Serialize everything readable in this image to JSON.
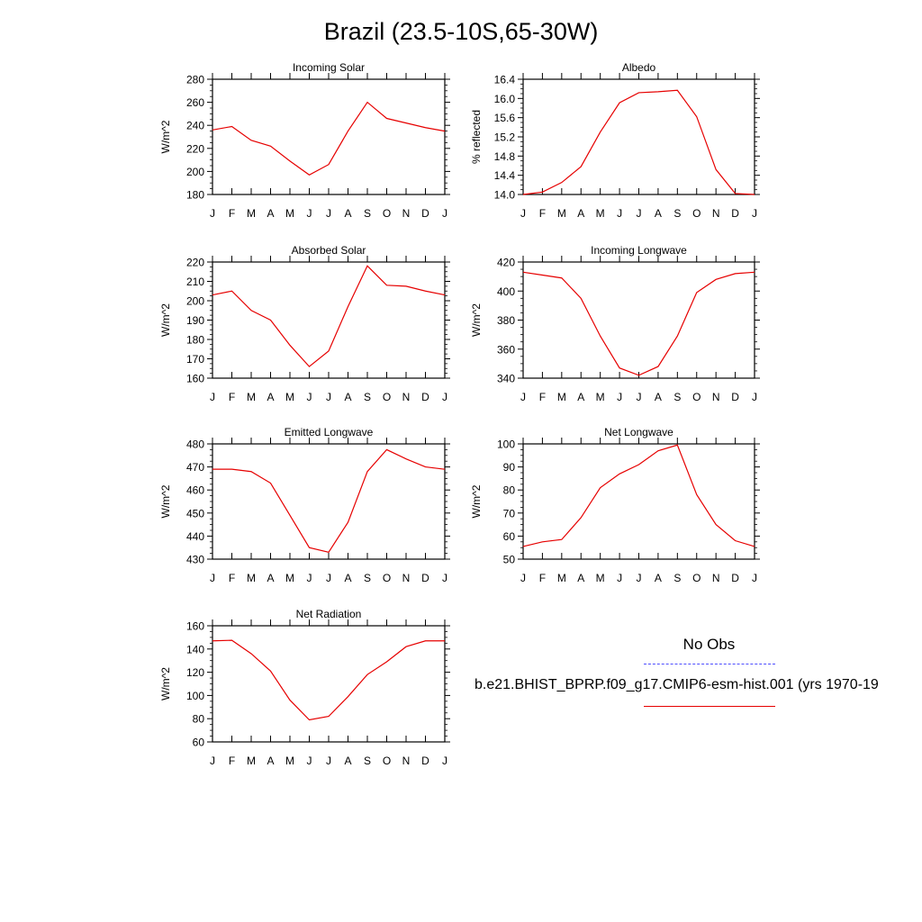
{
  "title": "Brazil (23.5-10S,65-30W)",
  "legend": {
    "title": "No Obs",
    "model_label": "b.e21.BHIST_BPRP.f09_g17.CMIP6-esm-hist.001 (yrs 1970-19",
    "obs_color": "#4d4dff",
    "model_color": "#e60000"
  },
  "chart_data": [
    {
      "type": "line",
      "title": "Incoming Solar",
      "ylabel": "W/m^2",
      "categories": [
        "J",
        "F",
        "M",
        "A",
        "M",
        "J",
        "J",
        "A",
        "S",
        "O",
        "N",
        "D",
        "J"
      ],
      "ylim": [
        180,
        280
      ],
      "yticks": [
        180,
        200,
        220,
        240,
        260,
        280
      ],
      "ytick_labels": [
        "180",
        "200",
        "220",
        "240",
        "260",
        "280"
      ],
      "series": [
        {
          "values": [
            236,
            239,
            227,
            222,
            209,
            197,
            206,
            235,
            260,
            246,
            242,
            238,
            235
          ]
        }
      ]
    },
    {
      "type": "line",
      "title": "Albedo",
      "ylabel": "% reflected",
      "categories": [
        "J",
        "F",
        "M",
        "A",
        "M",
        "J",
        "J",
        "A",
        "S",
        "O",
        "N",
        "D",
        "J"
      ],
      "ylim": [
        14.0,
        16.4
      ],
      "yticks": [
        14.0,
        14.4,
        14.8,
        15.2,
        15.6,
        16.0,
        16.4
      ],
      "ytick_labels": [
        "14.0",
        "14.4",
        "14.8",
        "15.2",
        "15.6",
        "16.0",
        "16.4"
      ],
      "series": [
        {
          "values": [
            14.0,
            14.05,
            14.25,
            14.58,
            15.3,
            15.91,
            16.12,
            16.14,
            16.17,
            15.62,
            14.52,
            14.02,
            14.0
          ]
        }
      ]
    },
    {
      "type": "line",
      "title": "Absorbed Solar",
      "ylabel": "W/m^2",
      "categories": [
        "J",
        "F",
        "M",
        "A",
        "M",
        "J",
        "J",
        "A",
        "S",
        "O",
        "N",
        "D",
        "J"
      ],
      "ylim": [
        160,
        220
      ],
      "yticks": [
        160,
        170,
        180,
        190,
        200,
        210,
        220
      ],
      "ytick_labels": [
        "160",
        "170",
        "180",
        "190",
        "200",
        "210",
        "220"
      ],
      "series": [
        {
          "values": [
            203,
            205,
            195,
            190,
            177,
            166,
            174,
            197,
            218,
            208,
            207.5,
            205,
            203
          ]
        }
      ]
    },
    {
      "type": "line",
      "title": "Incoming Longwave",
      "ylabel": "W/m^2",
      "categories": [
        "J",
        "F",
        "M",
        "A",
        "M",
        "J",
        "J",
        "A",
        "S",
        "O",
        "N",
        "D",
        "J"
      ],
      "ylim": [
        340,
        420
      ],
      "yticks": [
        340,
        360,
        380,
        400,
        420
      ],
      "ytick_labels": [
        "340",
        "360",
        "380",
        "400",
        "420"
      ],
      "series": [
        {
          "values": [
            413,
            411,
            409,
            395,
            369,
            347,
            342,
            348,
            369,
            399,
            408,
            412,
            413
          ]
        }
      ]
    },
    {
      "type": "line",
      "title": "Emitted Longwave",
      "ylabel": "W/m^2",
      "categories": [
        "J",
        "F",
        "M",
        "A",
        "M",
        "J",
        "J",
        "A",
        "S",
        "O",
        "N",
        "D",
        "J"
      ],
      "ylim": [
        430,
        480
      ],
      "yticks": [
        430,
        440,
        450,
        460,
        470,
        480
      ],
      "ytick_labels": [
        "430",
        "440",
        "450",
        "460",
        "470",
        "480"
      ],
      "series": [
        {
          "values": [
            469,
            469,
            468,
            463,
            449,
            435,
            433,
            446,
            468,
            477.5,
            473.5,
            470,
            469
          ]
        }
      ]
    },
    {
      "type": "line",
      "title": "Net Longwave",
      "ylabel": "W/m^2",
      "categories": [
        "J",
        "F",
        "M",
        "A",
        "M",
        "J",
        "J",
        "A",
        "S",
        "O",
        "N",
        "D",
        "J"
      ],
      "ylim": [
        50,
        100
      ],
      "yticks": [
        50,
        60,
        70,
        80,
        90,
        100
      ],
      "ytick_labels": [
        "50",
        "60",
        "70",
        "80",
        "90",
        "100"
      ],
      "series": [
        {
          "values": [
            55.5,
            57.5,
            58.5,
            68,
            81,
            87,
            91,
            97,
            99.5,
            78,
            65,
            58,
            55.5
          ]
        }
      ]
    },
    {
      "type": "line",
      "title": "Net Radiation",
      "ylabel": "W/m^2",
      "categories": [
        "J",
        "F",
        "M",
        "A",
        "M",
        "J",
        "J",
        "A",
        "S",
        "O",
        "N",
        "D",
        "J"
      ],
      "ylim": [
        60,
        160
      ],
      "yticks": [
        60,
        80,
        100,
        120,
        140,
        160
      ],
      "ytick_labels": [
        "60",
        "80",
        "100",
        "120",
        "140",
        "160"
      ],
      "series": [
        {
          "values": [
            147,
            147.5,
            136,
            121,
            96,
            79,
            82,
            99,
            118,
            129,
            142,
            147,
            147
          ]
        }
      ]
    }
  ]
}
